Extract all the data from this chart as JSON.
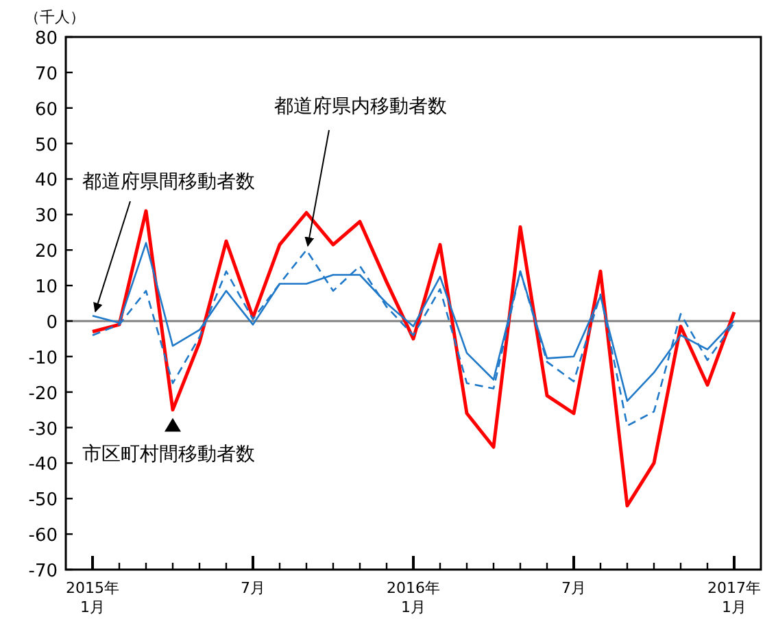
{
  "chart_data": {
    "type": "line",
    "ylabel": "（千人）",
    "x": [
      "2015-01",
      "2015-02",
      "2015-03",
      "2015-04",
      "2015-05",
      "2015-06",
      "2015-07",
      "2015-08",
      "2015-09",
      "2015-10",
      "2015-11",
      "2015-12",
      "2016-01",
      "2016-02",
      "2016-03",
      "2016-04",
      "2016-05",
      "2016-06",
      "2016-07",
      "2016-08",
      "2016-09",
      "2016-10",
      "2016-11",
      "2016-12",
      "2017-01"
    ],
    "series": [
      {
        "color": "#ff0000",
        "line_style": "solid",
        "values": [
          -3,
          -1,
          31,
          -25,
          -6,
          22.5,
          1,
          21.5,
          30.5,
          21.5,
          28,
          11,
          -5,
          21.5,
          -26,
          -35.5,
          26.5,
          -21,
          -26,
          14,
          -52,
          -40,
          -1.5,
          -18,
          2.5
        ]
      },
      {
        "color": "#1f78c8",
        "line_style": "solid",
        "values": [
          1.5,
          -0.5,
          22,
          -7,
          -2.5,
          8.5,
          -1,
          10.5,
          10.5,
          13,
          13,
          5,
          -1.5,
          12.5,
          -9,
          -16.5,
          14,
          -10.5,
          -10,
          7,
          -22.5,
          -14.5,
          -4,
          -8,
          0
        ]
      },
      {
        "color": "#1f78c8",
        "line_style": "dashed",
        "values": [
          -4,
          -1,
          8.5,
          -17.5,
          -4.5,
          14,
          0.5,
          10.5,
          20,
          8.5,
          15.5,
          4,
          -4,
          9,
          -17.5,
          -19,
          14,
          -11.5,
          -17,
          7.5,
          -29.5,
          -25.5,
          2,
          -11,
          -0.5
        ]
      }
    ],
    "xlim": [
      "2014-12",
      "2017-02"
    ],
    "xticks": [
      {
        "value": "2015-01",
        "label": "2015年\n1月"
      },
      {
        "value": "2015-02",
        "label": null
      },
      {
        "value": "2015-03",
        "label": null
      },
      {
        "value": "2015-04",
        "label": null
      },
      {
        "value": "2015-05",
        "label": null
      },
      {
        "value": "2015-06",
        "label": null
      },
      {
        "value": "2015-07",
        "label": "7月"
      },
      {
        "value": "2015-08",
        "label": null
      },
      {
        "value": "2015-09",
        "label": null
      },
      {
        "value": "2015-10",
        "label": null
      },
      {
        "value": "2015-11",
        "label": null
      },
      {
        "value": "2015-12",
        "label": null
      },
      {
        "value": "2016-01",
        "label": "2016年\n1月"
      },
      {
        "value": "2016-02",
        "label": null
      },
      {
        "value": "2016-03",
        "label": null
      },
      {
        "value": "2016-04",
        "label": null
      },
      {
        "value": "2016-05",
        "label": null
      },
      {
        "value": "2016-06",
        "label": null
      },
      {
        "value": "2016-07",
        "label": "7月"
      },
      {
        "value": "2016-08",
        "label": null
      },
      {
        "value": "2016-09",
        "label": null
      },
      {
        "value": "2016-10",
        "label": null
      },
      {
        "value": "2016-11",
        "label": null
      },
      {
        "value": "2016-12",
        "label": null
      },
      {
        "value": "2017-01",
        "label": "2017年\n1月"
      }
    ],
    "ylim": [
      -70,
      80
    ],
    "yticks": [
      -70,
      -60,
      -50,
      -40,
      -30,
      -20,
      -10,
      0,
      10,
      20,
      30,
      40,
      50,
      60,
      70,
      80
    ],
    "ref_lines": [
      {
        "axis": "y",
        "value": 0,
        "color": "#808080"
      }
    ],
    "annotations": [
      {
        "text": "都道府県間移動者数",
        "x": "2015-01",
        "y": 1.5
      },
      {
        "text": "都道府県内移動者数",
        "x": "2015-09",
        "y": 20
      },
      {
        "text": "市区町村間移動者数",
        "x": "2015-04",
        "y": -25
      }
    ],
    "grid": false
  }
}
